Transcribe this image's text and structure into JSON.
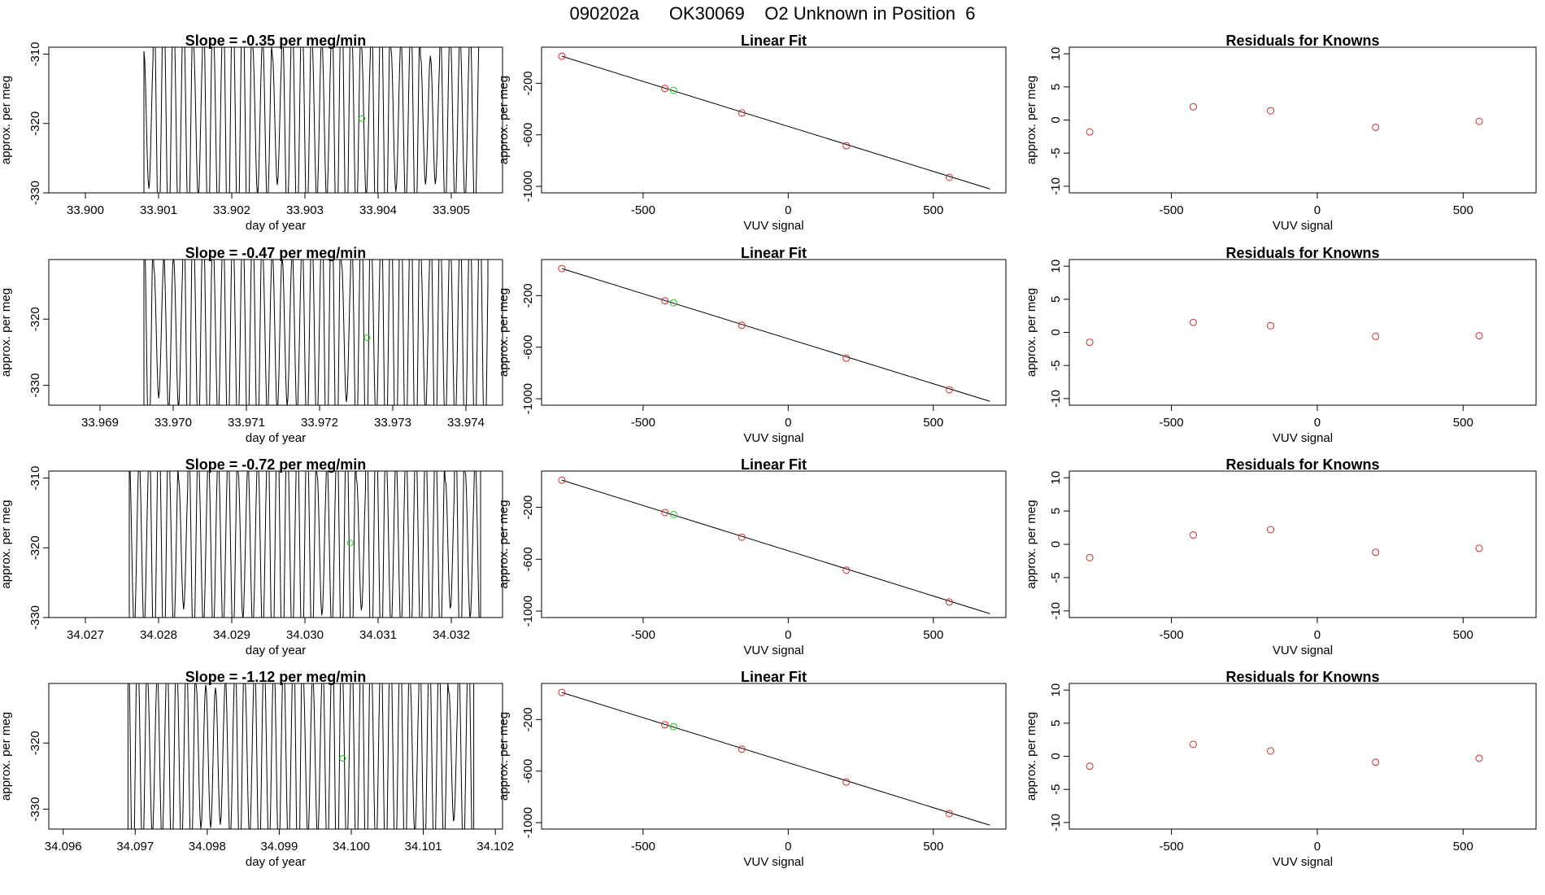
{
  "figure": {
    "title": "090202a      OK30069    O2 Unknown in Position  6"
  },
  "colors": {
    "axis": "#000000",
    "line": "#000000",
    "known_point": "#d62728",
    "unknown_point": "#22cc22",
    "grid_tick": "#bbbbbb"
  },
  "panel_labels": {
    "linear_fit_title": "Linear Fit",
    "residuals_title": "Residuals for Knowns",
    "x_time_label": "day of year",
    "x_vuv_label": "VUV signal",
    "y_label": "approx. per meg"
  },
  "chart_data": [
    {
      "type": "line",
      "row": 1,
      "title": "Slope =  -0.35  per meg/min",
      "xlabel": "day of year",
      "ylabel": "approx. per meg",
      "xlim": [
        33.8995,
        33.9057
      ],
      "ylim": [
        -330,
        -309
      ],
      "xticks": [
        33.9,
        33.901,
        33.902,
        33.903,
        33.904,
        33.905
      ],
      "xtick_labels": [
        "33.900",
        "33.901",
        "33.902",
        "33.903",
        "33.904",
        "33.905"
      ],
      "yticks": [
        -310,
        -320,
        -330
      ],
      "ytick_labels": [
        "-310",
        "-320",
        "-330"
      ],
      "trace_start": 33.9008,
      "trace_end": 33.9054,
      "period": 0.000135,
      "green_point": {
        "x": 33.90378,
        "y": -319.3
      }
    },
    {
      "type": "scatter",
      "row": 1,
      "title": "Linear Fit",
      "xlabel": "VUV signal",
      "ylabel": "approx. per meg",
      "xlim": [
        -850,
        750
      ],
      "ylim": [
        -1050,
        80
      ],
      "xticks": [
        -500,
        0,
        500
      ],
      "xtick_labels": [
        "-500",
        "0",
        "500"
      ],
      "yticks": [
        -200,
        -600,
        -1000
      ],
      "ytick_labels": [
        "-200",
        "-600",
        "-1000"
      ],
      "fit_line": {
        "x": [
          -780,
          695
        ],
        "y": [
          10,
          -1020
        ]
      },
      "known_points": {
        "x": [
          -780,
          -425,
          -160,
          200,
          555
        ],
        "y": [
          10,
          -240,
          -430,
          -685,
          -930
        ]
      },
      "unknown_points": {
        "x": [
          -395
        ],
        "y": [
          -255
        ]
      }
    },
    {
      "type": "scatter",
      "row": 1,
      "title": "Residuals for Knowns",
      "xlabel": "VUV signal",
      "ylabel": "approx. per meg",
      "xlim": [
        -850,
        750
      ],
      "ylim": [
        -11,
        11
      ],
      "xticks": [
        -500,
        0,
        500
      ],
      "xtick_labels": [
        "-500",
        "0",
        "500"
      ],
      "yticks": [
        10,
        5,
        0,
        -5,
        -10
      ],
      "ytick_labels": [
        "10",
        "5",
        "0",
        "-5",
        "-10"
      ],
      "known_points": {
        "x": [
          -780,
          -425,
          -160,
          200,
          555
        ],
        "y": [
          -1.8,
          2.0,
          1.4,
          -1.1,
          -0.2
        ]
      }
    },
    {
      "type": "line",
      "row": 2,
      "title": "Slope =  -0.47  per meg/min",
      "xlabel": "day of year",
      "ylabel": "approx. per meg",
      "xlim": [
        33.9683,
        33.9745
      ],
      "ylim": [
        -333,
        -311
      ],
      "xticks": [
        33.969,
        33.97,
        33.971,
        33.972,
        33.973,
        33.974
      ],
      "xtick_labels": [
        "33.969",
        "33.970",
        "33.971",
        "33.972",
        "33.973",
        "33.974"
      ],
      "yticks": [
        -320,
        -330
      ],
      "ytick_labels": [
        "-320",
        "-330"
      ],
      "trace_start": 33.9696,
      "trace_end": 33.9743,
      "period": 0.000135,
      "green_point": {
        "x": 33.97265,
        "y": -322.8
      }
    },
    {
      "type": "scatter",
      "row": 2,
      "title": "Linear Fit",
      "xlabel": "VUV signal",
      "ylabel": "approx. per meg",
      "xlim": [
        -850,
        750
      ],
      "ylim": [
        -1050,
        80
      ],
      "xticks": [
        -500,
        0,
        500
      ],
      "xtick_labels": [
        "-500",
        "0",
        "500"
      ],
      "yticks": [
        -200,
        -600,
        -1000
      ],
      "ytick_labels": [
        "-200",
        "-600",
        "-1000"
      ],
      "fit_line": {
        "x": [
          -780,
          695
        ],
        "y": [
          10,
          -1020
        ]
      },
      "known_points": {
        "x": [
          -780,
          -425,
          -160,
          200,
          555
        ],
        "y": [
          10,
          -240,
          -430,
          -685,
          -930
        ]
      },
      "unknown_points": {
        "x": [
          -395
        ],
        "y": [
          -255
        ]
      }
    },
    {
      "type": "scatter",
      "row": 2,
      "title": "Residuals for Knowns",
      "xlabel": "VUV signal",
      "ylabel": "approx. per meg",
      "xlim": [
        -850,
        750
      ],
      "ylim": [
        -11,
        11
      ],
      "xticks": [
        -500,
        0,
        500
      ],
      "xtick_labels": [
        "-500",
        "0",
        "500"
      ],
      "yticks": [
        10,
        5,
        0,
        -5,
        -10
      ],
      "ytick_labels": [
        "10",
        "5",
        "0",
        "-5",
        "-10"
      ],
      "known_points": {
        "x": [
          -780,
          -425,
          -160,
          200,
          555
        ],
        "y": [
          -1.5,
          1.5,
          1.0,
          -0.6,
          -0.5
        ]
      }
    },
    {
      "type": "line",
      "row": 3,
      "title": "Slope =  -0.72  per meg/min",
      "xlabel": "day of year",
      "ylabel": "approx. per meg",
      "xlim": [
        34.0265,
        34.0327
      ],
      "ylim": [
        -330,
        -309
      ],
      "xticks": [
        34.027,
        34.028,
        34.029,
        34.03,
        34.031,
        34.032
      ],
      "xtick_labels": [
        "34.027",
        "34.028",
        "34.029",
        "34.030",
        "34.031",
        "34.032"
      ],
      "yticks": [
        -310,
        -320,
        -330
      ],
      "ytick_labels": [
        "-310",
        "-320",
        "-330"
      ],
      "trace_start": 34.0276,
      "trace_end": 34.0324,
      "period": 0.000135,
      "green_point": {
        "x": 34.03062,
        "y": -319.3
      }
    },
    {
      "type": "scatter",
      "row": 3,
      "title": "Linear Fit",
      "xlabel": "VUV signal",
      "ylabel": "approx. per meg",
      "xlim": [
        -850,
        750
      ],
      "ylim": [
        -1050,
        80
      ],
      "xticks": [
        -500,
        0,
        500
      ],
      "xtick_labels": [
        "-500",
        "0",
        "500"
      ],
      "yticks": [
        -200,
        -600,
        -1000
      ],
      "ytick_labels": [
        "-200",
        "-600",
        "-1000"
      ],
      "fit_line": {
        "x": [
          -780,
          695
        ],
        "y": [
          10,
          -1020
        ]
      },
      "known_points": {
        "x": [
          -780,
          -425,
          -160,
          200,
          555
        ],
        "y": [
          10,
          -240,
          -430,
          -685,
          -930
        ]
      },
      "unknown_points": {
        "x": [
          -395
        ],
        "y": [
          -255
        ]
      }
    },
    {
      "type": "scatter",
      "row": 3,
      "title": "Residuals for Knowns",
      "xlabel": "VUV signal",
      "ylabel": "approx. per meg",
      "xlim": [
        -850,
        750
      ],
      "ylim": [
        -11,
        11
      ],
      "xticks": [
        -500,
        0,
        500
      ],
      "xtick_labels": [
        "-500",
        "0",
        "500"
      ],
      "yticks": [
        10,
        5,
        0,
        -5,
        -10
      ],
      "ytick_labels": [
        "10",
        "5",
        "0",
        "-5",
        "-10"
      ],
      "known_points": {
        "x": [
          -780,
          -425,
          -160,
          200,
          555
        ],
        "y": [
          -2.0,
          1.4,
          2.2,
          -1.2,
          -0.6
        ]
      }
    },
    {
      "type": "line",
      "row": 4,
      "title": "Slope =  -1.12  per meg/min",
      "xlabel": "day of year",
      "ylabel": "approx. per meg",
      "xlim": [
        34.0958,
        34.1021
      ],
      "ylim": [
        -333,
        -311
      ],
      "xticks": [
        34.096,
        34.097,
        34.098,
        34.099,
        34.1,
        34.101,
        34.102
      ],
      "xtick_labels": [
        "34.096",
        "34.097",
        "34.098",
        "34.099",
        "34.100",
        "34.101",
        "34.102"
      ],
      "yticks": [
        -320,
        -330
      ],
      "ytick_labels": [
        "-320",
        "-330"
      ],
      "trace_start": 34.0969,
      "trace_end": 34.1017,
      "period": 0.000135,
      "green_point": {
        "x": 34.09988,
        "y": -322.3
      }
    },
    {
      "type": "scatter",
      "row": 4,
      "title": "Linear Fit",
      "xlabel": "VUV signal",
      "ylabel": "approx. per meg",
      "xlim": [
        -850,
        750
      ],
      "ylim": [
        -1050,
        80
      ],
      "xticks": [
        -500,
        0,
        500
      ],
      "xtick_labels": [
        "-500",
        "0",
        "500"
      ],
      "yticks": [
        -200,
        -600,
        -1000
      ],
      "ytick_labels": [
        "-200",
        "-600",
        "-1000"
      ],
      "fit_line": {
        "x": [
          -780,
          695
        ],
        "y": [
          10,
          -1020
        ]
      },
      "known_points": {
        "x": [
          -780,
          -425,
          -160,
          200,
          555
        ],
        "y": [
          10,
          -240,
          -430,
          -685,
          -930
        ]
      },
      "unknown_points": {
        "x": [
          -395
        ],
        "y": [
          -255
        ]
      }
    },
    {
      "type": "scatter",
      "row": 4,
      "title": "Residuals for Knowns",
      "xlabel": "VUV signal",
      "ylabel": "approx. per meg",
      "xlim": [
        -850,
        750
      ],
      "ylim": [
        -11,
        11
      ],
      "xticks": [
        -500,
        0,
        500
      ],
      "xtick_labels": [
        "-500",
        "0",
        "500"
      ],
      "yticks": [
        10,
        5,
        0,
        -5,
        -10
      ],
      "ytick_labels": [
        "10",
        "5",
        "0",
        "-5",
        "-10"
      ],
      "known_points": {
        "x": [
          -780,
          -425,
          -160,
          200,
          555
        ],
        "y": [
          -1.5,
          1.8,
          0.8,
          -0.9,
          -0.3
        ]
      }
    }
  ]
}
